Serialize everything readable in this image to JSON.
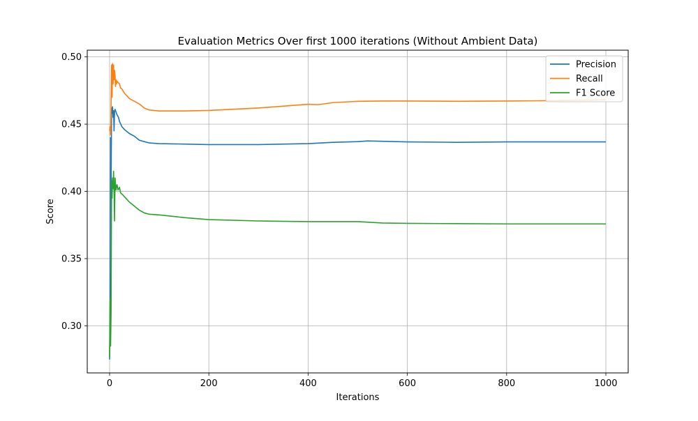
{
  "chart_data": {
    "type": "line",
    "title": "Evaluation Metrics Over first 1000 iterations (Without Ambient Data)",
    "xlabel": "Iterations",
    "ylabel": "Score",
    "xlim": [
      -45,
      1045
    ],
    "ylim": [
      0.265,
      0.505
    ],
    "xticks": [
      0,
      200,
      400,
      600,
      800,
      1000
    ],
    "xtick_labels": [
      "0",
      "200",
      "400",
      "600",
      "800",
      "1000"
    ],
    "yticks": [
      0.3,
      0.35,
      0.4,
      0.45,
      0.5
    ],
    "ytick_labels": [
      "0.30",
      "0.35",
      "0.40",
      "0.45",
      "0.50"
    ],
    "grid": true,
    "legend_position": "top-right",
    "series": [
      {
        "name": "Precision",
        "color": "#1f77b4",
        "x": [
          0,
          1,
          2,
          3,
          4,
          5,
          6,
          7,
          8,
          9,
          10,
          11,
          12,
          13,
          15,
          18,
          20,
          25,
          30,
          40,
          50,
          60,
          70,
          80,
          100,
          150,
          200,
          300,
          400,
          450,
          500,
          520,
          600,
          700,
          800,
          900,
          1000
        ],
        "y": [
          0.275,
          0.31,
          0.44,
          0.4,
          0.462,
          0.458,
          0.463,
          0.455,
          0.46,
          0.445,
          0.459,
          0.461,
          0.46,
          0.459,
          0.457,
          0.455,
          0.452,
          0.448,
          0.446,
          0.443,
          0.441,
          0.438,
          0.437,
          0.436,
          0.4355,
          0.4352,
          0.4348,
          0.4348,
          0.4355,
          0.4365,
          0.437,
          0.4375,
          0.4368,
          0.4365,
          0.4368,
          0.4368,
          0.4368
        ]
      },
      {
        "name": "Recall",
        "color": "#ff7f0e",
        "x": [
          0,
          1,
          2,
          3,
          4,
          5,
          6,
          7,
          8,
          9,
          10,
          11,
          12,
          13,
          14,
          15,
          17,
          20,
          22,
          25,
          30,
          40,
          50,
          60,
          70,
          80,
          100,
          150,
          200,
          300,
          400,
          420,
          450,
          500,
          550,
          600,
          700,
          800,
          900,
          1000
        ],
        "y": [
          0.445,
          0.448,
          0.442,
          0.465,
          0.494,
          0.47,
          0.495,
          0.48,
          0.494,
          0.483,
          0.49,
          0.486,
          0.478,
          0.483,
          0.48,
          0.482,
          0.481,
          0.48,
          0.477,
          0.476,
          0.473,
          0.469,
          0.467,
          0.465,
          0.462,
          0.4605,
          0.4598,
          0.4598,
          0.4602,
          0.462,
          0.4648,
          0.4645,
          0.466,
          0.467,
          0.4672,
          0.4672,
          0.467,
          0.4672,
          0.4675,
          0.468
        ]
      },
      {
        "name": "F1 Score",
        "color": "#2ca02c",
        "x": [
          0,
          1,
          2,
          3,
          4,
          5,
          6,
          7,
          8,
          9,
          10,
          11,
          12,
          13,
          14,
          15,
          17,
          20,
          22,
          25,
          30,
          40,
          50,
          60,
          70,
          80,
          100,
          150,
          200,
          300,
          400,
          450,
          500,
          550,
          600,
          700,
          800,
          900,
          1000
        ],
        "y": [
          0.277,
          0.32,
          0.285,
          0.31,
          0.408,
          0.395,
          0.41,
          0.402,
          0.415,
          0.4,
          0.378,
          0.41,
          0.405,
          0.401,
          0.404,
          0.405,
          0.401,
          0.403,
          0.399,
          0.398,
          0.396,
          0.392,
          0.389,
          0.386,
          0.384,
          0.383,
          0.3825,
          0.3805,
          0.379,
          0.378,
          0.3775,
          0.3775,
          0.3775,
          0.3765,
          0.3762,
          0.376,
          0.3758,
          0.3758,
          0.3758
        ]
      }
    ]
  }
}
